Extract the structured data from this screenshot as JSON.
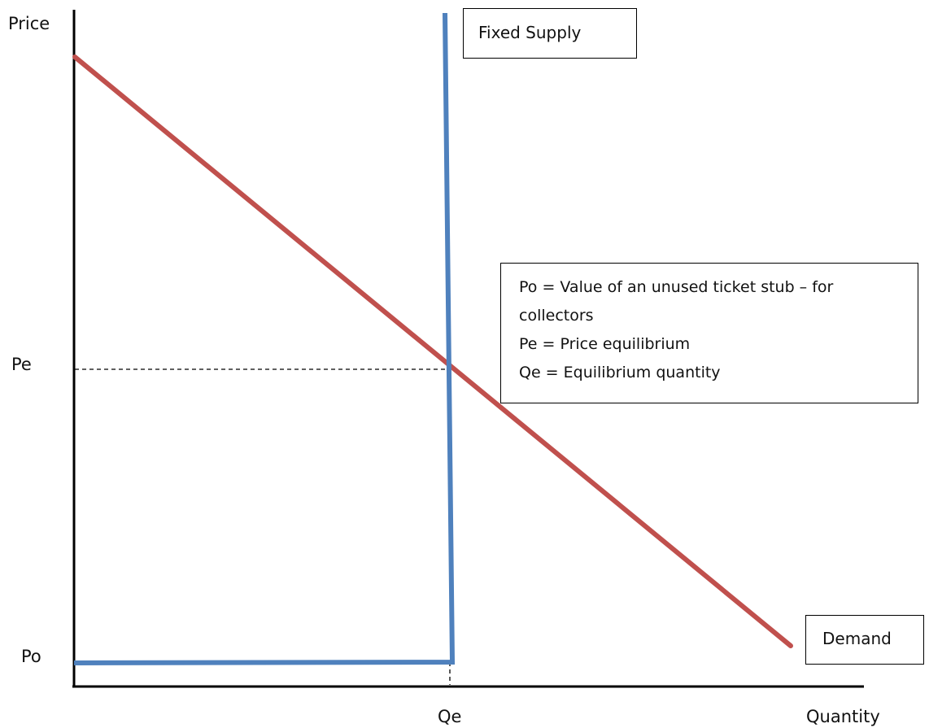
{
  "axes": {
    "y_label": "Price",
    "x_label": "Quantity",
    "tick_pe": "Pe",
    "tick_po": "Po",
    "tick_qe": "Qe"
  },
  "labels": {
    "supply": "Fixed Supply",
    "demand": "Demand"
  },
  "legend": {
    "lines": [
      "Po = Value of an unused ticket stub – for",
      "collectors",
      "Pe = Price equilibrium",
      "Qe = Equilibrium quantity"
    ]
  },
  "colors": {
    "demand": "#c0504d",
    "supply": "#4f81bd",
    "axis": "#000000"
  }
}
